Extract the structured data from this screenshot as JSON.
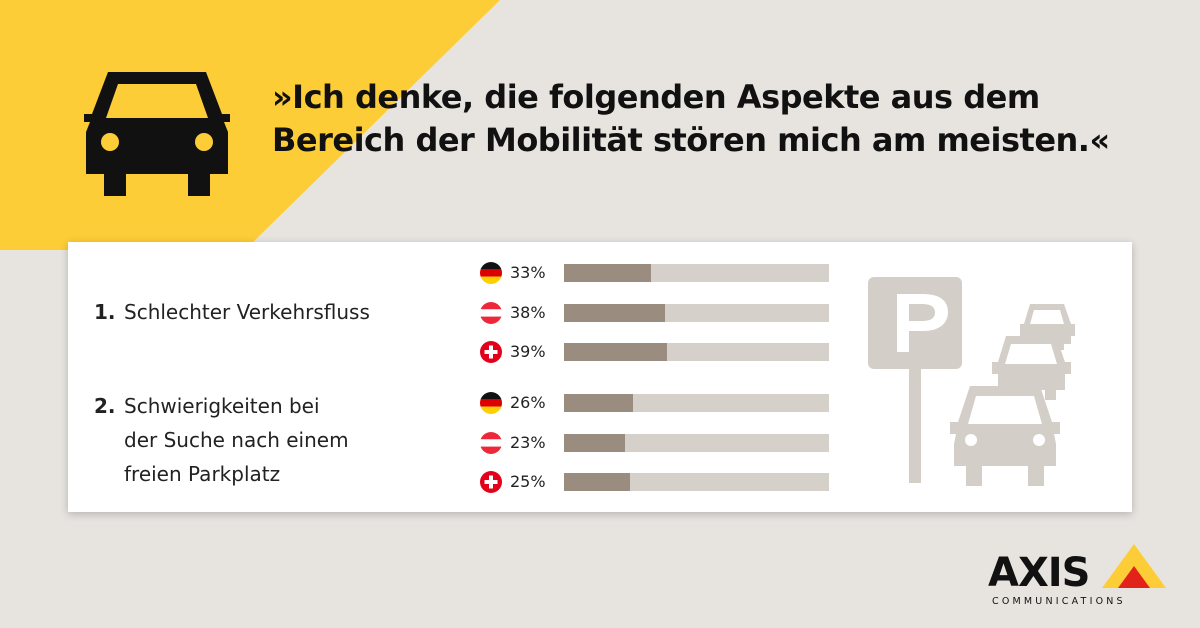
{
  "headline": {
    "line1": "»Ich denke, die folgenden Aspekte aus dem",
    "line2": "Bereich der Mobilität stören mich am meisten.«"
  },
  "items": [
    {
      "number": "1.",
      "lines": [
        "Schlechter Verkehrsfluss"
      ]
    },
    {
      "number": "2.",
      "lines": [
        "Schwierigkeiten bei",
        "der Suche nach einem",
        "freien Parkplatz"
      ]
    }
  ],
  "chart_data": {
    "type": "bar",
    "orientation": "horizontal",
    "categories": [
      "Schlechter Verkehrsfluss",
      "Schwierigkeiten bei der Suche nach einem freien Parkplatz"
    ],
    "series": [
      {
        "flag": "germany-flag-icon",
        "values": [
          33,
          26
        ],
        "labels": [
          "33%",
          "26%"
        ]
      },
      {
        "flag": "austria-flag-icon",
        "values": [
          38,
          23
        ],
        "labels": [
          "38%",
          "23%"
        ]
      },
      {
        "flag": "switzerland-flag-icon",
        "values": [
          39,
          25
        ],
        "labels": [
          "39%",
          "25%"
        ]
      }
    ],
    "xlim": [
      0,
      100
    ],
    "grid": false
  },
  "icons": {
    "car": "car-icon",
    "parking": "parking-sign-icon",
    "logo": "axis-logo"
  },
  "logo": {
    "wordmark": "AXIS",
    "subline": "COMMUNICATIONS"
  },
  "colors": {
    "background": "#e7e4e0",
    "accent_yellow": "#fdcd37",
    "card": "#ffffff",
    "bar_fill": "#9b8c80",
    "bar_track": "#d6d0ca",
    "illustration": "#d4cec8"
  }
}
